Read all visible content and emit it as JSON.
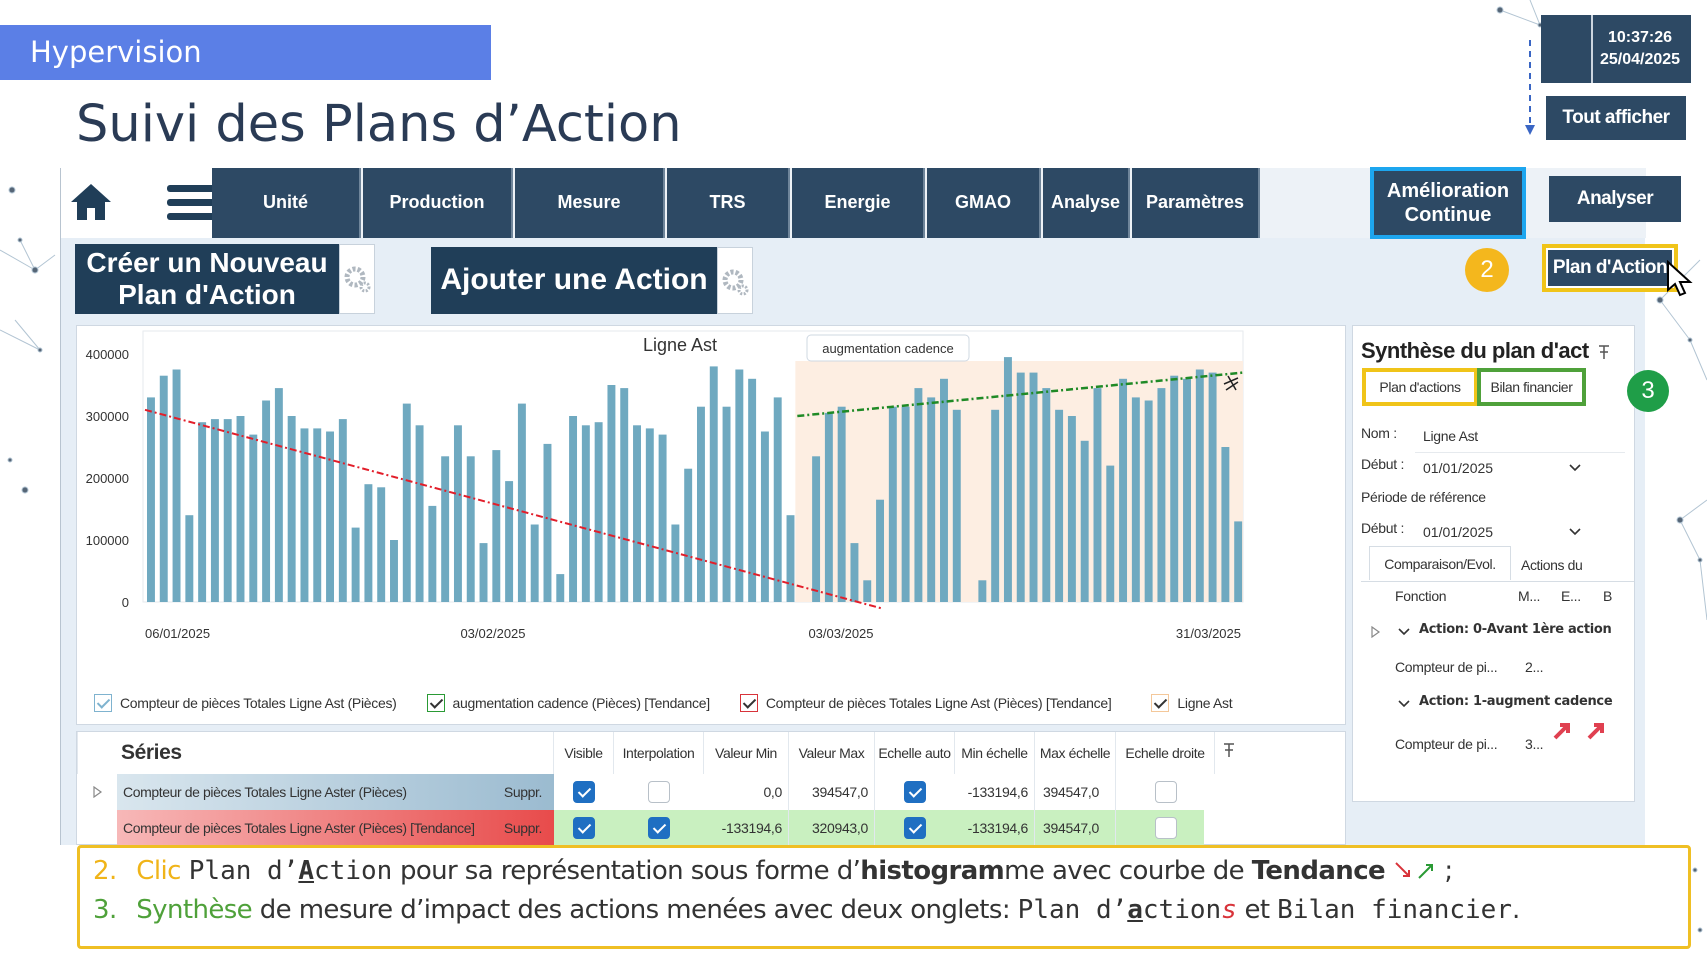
{
  "slide": {
    "banner": "Hypervision",
    "title": "Suivi des Plans d’Action"
  },
  "clock": {
    "time": "10:37:26",
    "date": "25/04/2025"
  },
  "nav": {
    "items": [
      "Unité",
      "Production",
      "Mesure",
      "TRS",
      "Energie",
      "GMAO",
      "Analyse",
      "Paramètres"
    ],
    "amelioration": "Amélioration Continue",
    "tout_afficher": "Tout afficher",
    "analyser": "Analyser",
    "plan_action": "Plan d'Action"
  },
  "buttons": {
    "creer": "Créer un Nouveau Plan d'Action",
    "ajouter": "Ajouter une Action"
  },
  "badges": {
    "b2": "2",
    "b3": "3"
  },
  "chart_data": {
    "type": "bar",
    "title": "Ligne Ast",
    "annotation": "augmentation cadence",
    "ylim": [
      0,
      400000
    ],
    "yticks": [
      "400000",
      "300000",
      "200000",
      "100000",
      "0"
    ],
    "xticks": [
      "06/01/2025",
      "03/02/2025",
      "03/03/2025",
      "31/03/2025"
    ],
    "values": [
      330000,
      365000,
      375000,
      140000,
      290000,
      295000,
      295000,
      300000,
      270000,
      325000,
      345000,
      300000,
      280000,
      280000,
      275000,
      295000,
      120000,
      190000,
      185000,
      100000,
      320000,
      285000,
      155000,
      235000,
      285000,
      235000,
      95000,
      245000,
      195000,
      320000,
      125000,
      255000,
      45000,
      300000,
      285000,
      290000,
      350000,
      345000,
      285000,
      280000,
      270000,
      125000,
      215000,
      315000,
      380000,
      315000,
      375000,
      360000,
      275000,
      330000,
      140000,
      0,
      235000,
      305000,
      315000,
      95000,
      35000,
      165000,
      315000,
      315000,
      345000,
      330000,
      360000,
      310000,
      0,
      35000,
      310000,
      395000,
      370000,
      370000,
      345000,
      310000,
      300000,
      260000,
      345000,
      220000,
      360000,
      330000,
      325000,
      345000,
      365000,
      360000,
      375000,
      370000,
      250000,
      130000
    ],
    "series": [
      {
        "name": "Compteur de pièces Totales Ligne Ast (Pièces)"
      },
      {
        "name": "augmentation cadence (Pièces) [Tendance]"
      },
      {
        "name": "Compteur de pièces Totales Ligne Ast (Pièces) [Tendance]"
      },
      {
        "name": "Ligne Ast"
      }
    ]
  },
  "legend": {
    "l1": "Compteur de pièces Totales Ligne Ast (Pièces)",
    "l2": "augmentation cadence (Pièces) [Tendance]",
    "l3": "Compteur de pièces Totales Ligne Ast (Pièces) [Tendance]",
    "l4": "Ligne Ast"
  },
  "series_table": {
    "title": "Séries",
    "headers": [
      "Visible",
      "Interpolation",
      "Valeur Min",
      "Valeur Max",
      "Echelle auto",
      "Min échelle",
      "Max échelle",
      "Echelle droite"
    ],
    "rows": [
      {
        "name": "Compteur de pièces Totales Ligne Aster (Pièces)",
        "suppr": "Suppr.",
        "min": "0,0",
        "max": "394547,0",
        "min_e": "-133194,6",
        "max_e": "394547,0"
      },
      {
        "name": "Compteur de pièces Totales Ligne Aster (Pièces)  [Tendance]",
        "suppr": "Suppr.",
        "min": "-133194,6",
        "max": "320943,0",
        "min_e": "-133194,6",
        "max_e": "394547,0"
      }
    ]
  },
  "synthese": {
    "title": "Synthèse du plan d'act",
    "tab1": "Plan d'actions",
    "tab2": "Bilan financier",
    "nom_label": "Nom :",
    "nom_value": "Ligne Ast",
    "debut_label": "Début :",
    "debut_value": "01/01/2025",
    "periode": "Période de référence",
    "debut2_label": "Début :",
    "debut2_value": "01/01/2025",
    "subtab1": "Comparaison/Evol.",
    "subtab2": "Actions du",
    "col_fonction": "Fonction",
    "col_m": "M...",
    "col_e": "E...",
    "col_b": "B",
    "group1": "Action: 0-Avant 1ère action",
    "row1_name": "Compteur de pi...",
    "row1_val": "2...",
    "group2": "Action: 1-augment  cadence",
    "row2_name": "Compteur de pi...",
    "row2_val": "3..."
  },
  "caption": {
    "n2": "2.",
    "clic": "Clic",
    "plan_action_mono_a": "Plan d’",
    "plan_action_mono_b": "A",
    "plan_action_mono_c": "ction",
    "c2a": " pour sa représentation sous forme d’",
    "c2b": "histogram",
    "c2c": "me avec courbe de ",
    "c2d": "Tendance",
    "c2e": " ;",
    "n3": "3.",
    "synth_word": "Synthèse",
    "c3a": " de mesure d’impact des actions menées avec deux onglets: ",
    "m3a": "Plan d’",
    "m3b": "a",
    "m3c": "ction",
    "m3d": "s",
    "c3b": " et ",
    "m3e": "Bilan financier",
    "c3c": "."
  }
}
